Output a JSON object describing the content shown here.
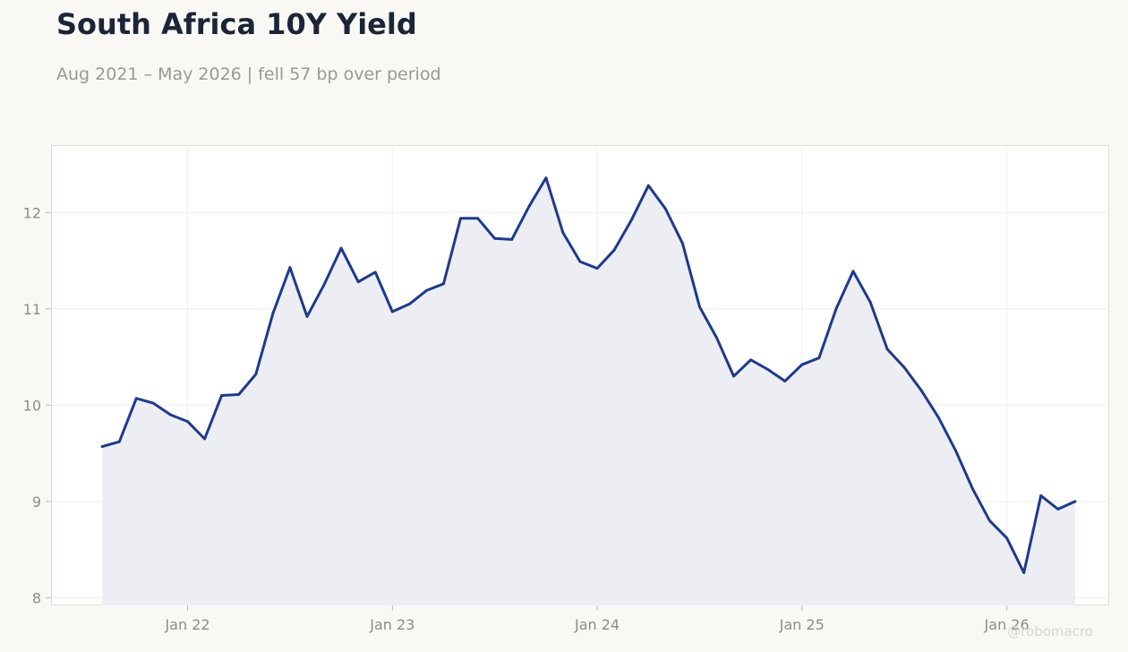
{
  "title": "South Africa 10Y Yield",
  "subtitle": "Aug 2021 – May 2026 | fell 57 bp over period",
  "watermark": "@robomacro",
  "colors": {
    "line": "#1e3a8a",
    "fill": "#eceef4",
    "background": "#f9f8f5",
    "plot_background": "#ffffff",
    "grid": "#eeeeee",
    "title": "#1b2538",
    "muted_text": "#999893"
  },
  "chart_data": {
    "type": "area",
    "title": "South Africa 10Y Yield",
    "subtitle": "Aug 2021 – May 2026 | fell 57 bp over period",
    "xlabel": "",
    "ylabel": "",
    "x": [
      "2021-08",
      "2021-09",
      "2021-10",
      "2021-11",
      "2021-12",
      "2022-01",
      "2022-02",
      "2022-03",
      "2022-04",
      "2022-05",
      "2022-06",
      "2022-07",
      "2022-08",
      "2022-09",
      "2022-10",
      "2022-11",
      "2022-12",
      "2023-01",
      "2023-02",
      "2023-03",
      "2023-04",
      "2023-05",
      "2023-06",
      "2023-07",
      "2023-08",
      "2023-09",
      "2023-10",
      "2023-11",
      "2023-12",
      "2024-01",
      "2024-02",
      "2024-03",
      "2024-04",
      "2024-05",
      "2024-06",
      "2024-07",
      "2024-08",
      "2024-09",
      "2024-10",
      "2024-11",
      "2024-12",
      "2025-01",
      "2025-02",
      "2025-03",
      "2025-04",
      "2025-05",
      "2025-06",
      "2025-07",
      "2025-08",
      "2025-09",
      "2025-10",
      "2025-11",
      "2025-12",
      "2026-01",
      "2026-02",
      "2026-03",
      "2026-04",
      "2026-05"
    ],
    "series": [
      {
        "values": [
          9.57,
          9.62,
          10.07,
          10.02,
          9.9,
          9.83,
          9.65,
          10.1,
          10.11,
          10.32,
          10.95,
          11.43,
          10.92,
          11.25,
          11.63,
          11.28,
          11.38,
          10.97,
          11.05,
          11.19,
          11.26,
          11.94,
          11.94,
          11.73,
          11.72,
          12.06,
          12.36,
          11.79,
          11.49,
          11.42,
          11.61,
          11.92,
          12.28,
          12.04,
          11.68,
          11.02,
          10.7,
          10.3,
          10.47,
          10.37,
          10.25,
          10.42,
          10.49,
          11.0,
          11.39,
          11.07,
          10.58,
          10.39,
          10.15,
          9.87,
          9.53,
          9.13,
          8.8,
          8.62,
          8.26,
          9.06,
          8.92,
          9.0
        ]
      }
    ],
    "x_ticks": [
      {
        "value": "2022-01",
        "label": "Jan 22"
      },
      {
        "value": "2023-01",
        "label": "Jan 23"
      },
      {
        "value": "2024-01",
        "label": "Jan 24"
      },
      {
        "value": "2025-01",
        "label": "Jan 25"
      },
      {
        "value": "2026-01",
        "label": "Jan 26"
      }
    ],
    "y_ticks": [
      8,
      9,
      10,
      11,
      12
    ],
    "ylim": [
      7.92,
      12.7
    ],
    "xlim": [
      "2021-05",
      "2026-07"
    ],
    "grid": true,
    "legend": "none"
  }
}
